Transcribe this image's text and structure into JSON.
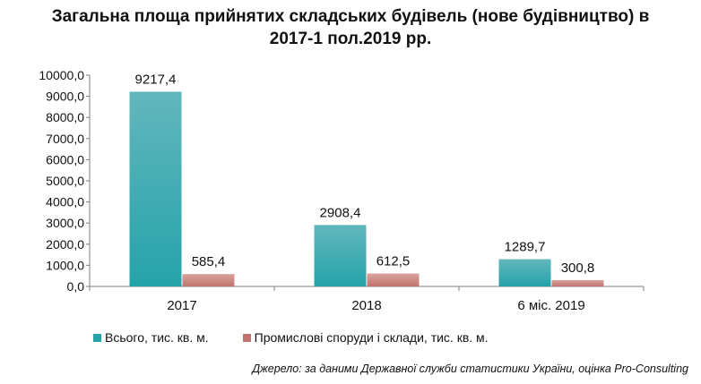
{
  "chart_data": {
    "type": "bar",
    "title_line1": "Загальна площа прийнятих складських будівель (нове будівництво) в",
    "title_line2": "2017-1 пол.2019 рр.",
    "categories": [
      "2017",
      "2018",
      "6 міс. 2019"
    ],
    "series": [
      {
        "name": "Всього,  тис. кв. м.",
        "values": [
          9217.4,
          2908.4,
          1289.7
        ],
        "labels": [
          "9217,4",
          "2908,4",
          "1289,7"
        ],
        "color": "#25A3A9",
        "color_light": "#62B7BD"
      },
      {
        "name": "Промислові  споруди  і склади,  тис. кв. м.",
        "values": [
          585.4,
          612.5,
          300.8
        ],
        "labels": [
          "585,4",
          "612,5",
          "300,8"
        ],
        "color": "#C0746D",
        "color_light": "#D9A29C"
      }
    ],
    "ylim": [
      0,
      10000
    ],
    "yticks": [
      0,
      1000,
      2000,
      3000,
      4000,
      5000,
      6000,
      7000,
      8000,
      9000,
      10000
    ],
    "ytick_labels": [
      "0,0",
      "1000,0",
      "2000,0",
      "3000,0",
      "4000,0",
      "5000,0",
      "6000,0",
      "7000,0",
      "8000,0",
      "9000,0",
      "10000,0"
    ],
    "grid": false,
    "legend_position": "bottom"
  },
  "source": "Джерело: за даними Державної служби статистики України, оцінка Pro-Consulting"
}
